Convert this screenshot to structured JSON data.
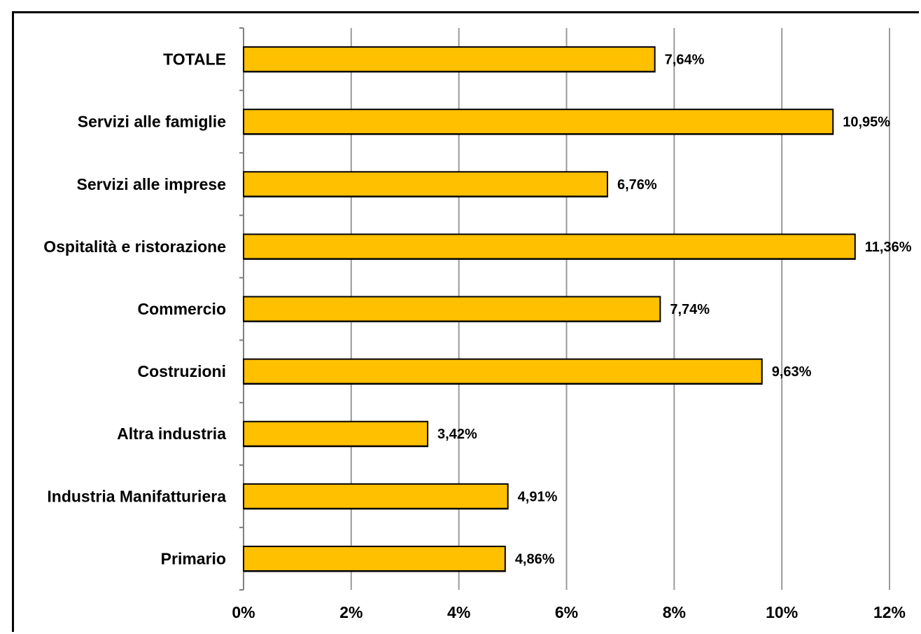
{
  "chart_data": {
    "type": "bar",
    "orientation": "horizontal",
    "categories": [
      "TOTALE",
      "Servizi alle famiglie",
      "Servizi alle imprese",
      "Ospitalità e ristorazione",
      "Commercio",
      "Costruzioni",
      "Altra industria",
      "Industria Manifatturiera",
      "Primario"
    ],
    "values": [
      7.64,
      10.95,
      6.76,
      11.36,
      7.74,
      9.63,
      3.42,
      4.91,
      4.86
    ],
    "value_labels": [
      "7,64%",
      "10,95%",
      "6,76%",
      "11,36%",
      "7,74%",
      "9,63%",
      "3,42%",
      "4,91%",
      "4,86%"
    ],
    "xlim": [
      0,
      12
    ],
    "x_ticks": [
      0,
      2,
      4,
      6,
      8,
      10,
      12
    ],
    "x_tick_labels": [
      "0%",
      "2%",
      "4%",
      "6%",
      "8%",
      "10%",
      "12%"
    ],
    "grid": "vertical",
    "title": "",
    "xlabel": "",
    "ylabel": "",
    "colors": {
      "bar": "#FFC000",
      "bar_edge": "#000000",
      "grid": "#9a9a9a",
      "axis": "#808080"
    }
  }
}
